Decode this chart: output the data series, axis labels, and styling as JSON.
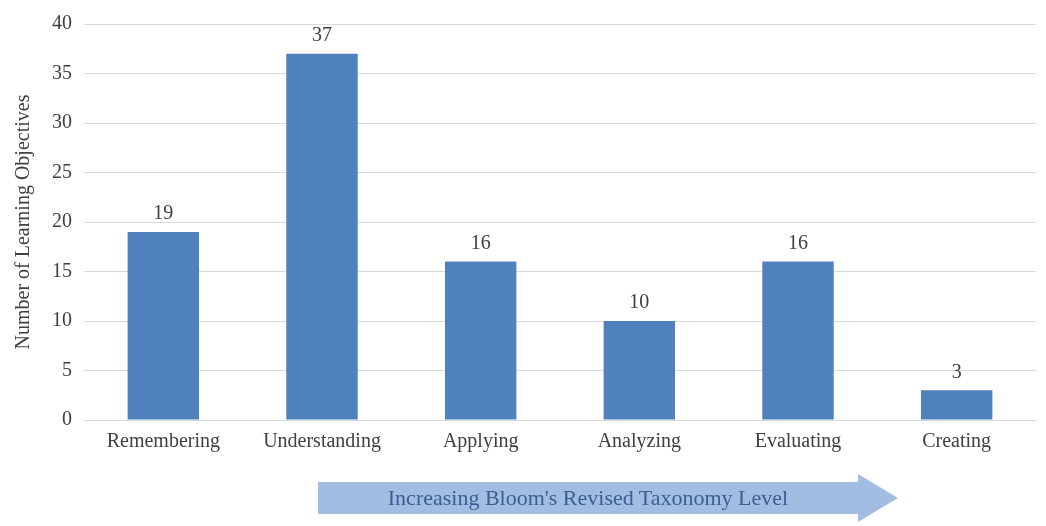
{
  "chart_data": {
    "type": "bar",
    "xlabel": "Increasing Bloom's Revised Taxonomy Level",
    "ylabel": "Number of Learning Objectives",
    "categories": [
      "Remembering",
      "Understanding",
      "Applying",
      "Analyzing",
      "Evaluating",
      "Creating"
    ],
    "values": [
      19,
      37,
      16,
      10,
      16,
      3
    ],
    "color": "#4f81bd",
    "ylim": [
      0,
      40
    ],
    "yticks": [
      0,
      5,
      10,
      15,
      20,
      25,
      30,
      35,
      40
    ],
    "grid": "y",
    "data_labels": true,
    "legend": false
  }
}
